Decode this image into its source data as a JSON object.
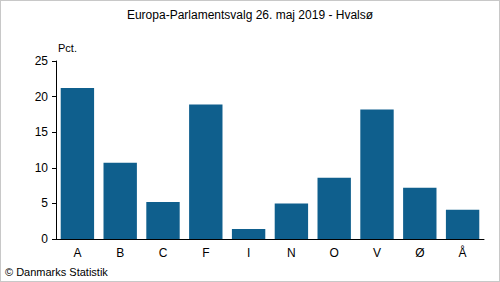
{
  "chart_data": {
    "type": "bar",
    "title": "Europa-Parlamentsvalg 26. maj 2019 - Hvalsø",
    "y_label": "Pct.",
    "annotations": [
      "© Danmarks Statistik"
    ],
    "categories": [
      "A",
      "B",
      "C",
      "F",
      "I",
      "N",
      "O",
      "V",
      "Ø",
      "Å"
    ],
    "values": [
      21.2,
      10.7,
      5.2,
      18.9,
      1.4,
      5.0,
      8.6,
      18.2,
      7.2,
      4.1
    ],
    "color": "#0f5f8d",
    "ylim": [
      0,
      25
    ],
    "yticks": [
      0,
      5,
      10,
      15,
      20,
      25
    ],
    "grid": false
  }
}
